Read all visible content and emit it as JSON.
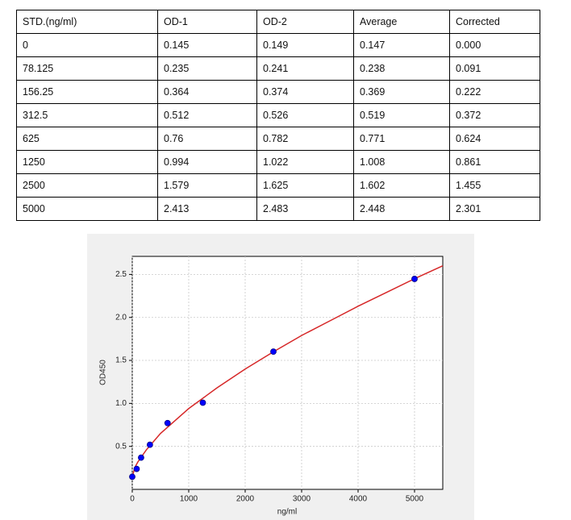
{
  "table": {
    "header": [
      "STD.(ng/ml)",
      "OD-1",
      "OD-2",
      "Average",
      "Corrected"
    ],
    "rows": [
      [
        "0",
        "0.145",
        "0.149",
        "0.147",
        "0.000"
      ],
      [
        "78.125",
        "0.235",
        "0.241",
        "0.238",
        "0.091"
      ],
      [
        "156.25",
        "0.364",
        "0.374",
        "0.369",
        "0.222"
      ],
      [
        "312.5",
        "0.512",
        "0.526",
        "0.519",
        "0.372"
      ],
      [
        "625",
        "0.76",
        "0.782",
        "0.771",
        "0.624"
      ],
      [
        "1250",
        "0.994",
        "1.022",
        "1.008",
        "0.861"
      ],
      [
        "2500",
        "1.579",
        "1.625",
        "1.602",
        "1.455"
      ],
      [
        "5000",
        "2.413",
        "2.483",
        "2.448",
        "2.301"
      ]
    ]
  },
  "chart_data": {
    "type": "scatter",
    "xlabel": "ng/ml",
    "ylabel": "OD450",
    "xlim": [
      0,
      5500
    ],
    "ylim": [
      0,
      2.71
    ],
    "xticks": [
      0,
      1000,
      2000,
      3000,
      4000,
      5000
    ],
    "yticks": [
      0.5,
      {
        "value": 1,
        "label": "1.0"
      },
      1.5,
      {
        "value": 2,
        "label": "2.0"
      },
      2.5
    ],
    "grid": true,
    "series": [
      {
        "kind": "points",
        "color": "#0000ff",
        "x": [
          0,
          78.125,
          156.25,
          312.5,
          625,
          1250,
          2500,
          5000
        ],
        "values": [
          0.147,
          0.238,
          0.369,
          0.519,
          0.771,
          1.008,
          1.602,
          2.448
        ]
      },
      {
        "kind": "line",
        "color": "#d62728",
        "x": [
          0,
          50,
          100,
          250,
          500,
          1000,
          1500,
          2000,
          2500,
          3000,
          3500,
          4000,
          4500,
          5000,
          5500
        ],
        "values": [
          0.15,
          0.26,
          0.32,
          0.46,
          0.65,
          0.94,
          1.18,
          1.4,
          1.6,
          1.79,
          1.96,
          2.13,
          2.29,
          2.45,
          2.6
        ]
      }
    ]
  }
}
